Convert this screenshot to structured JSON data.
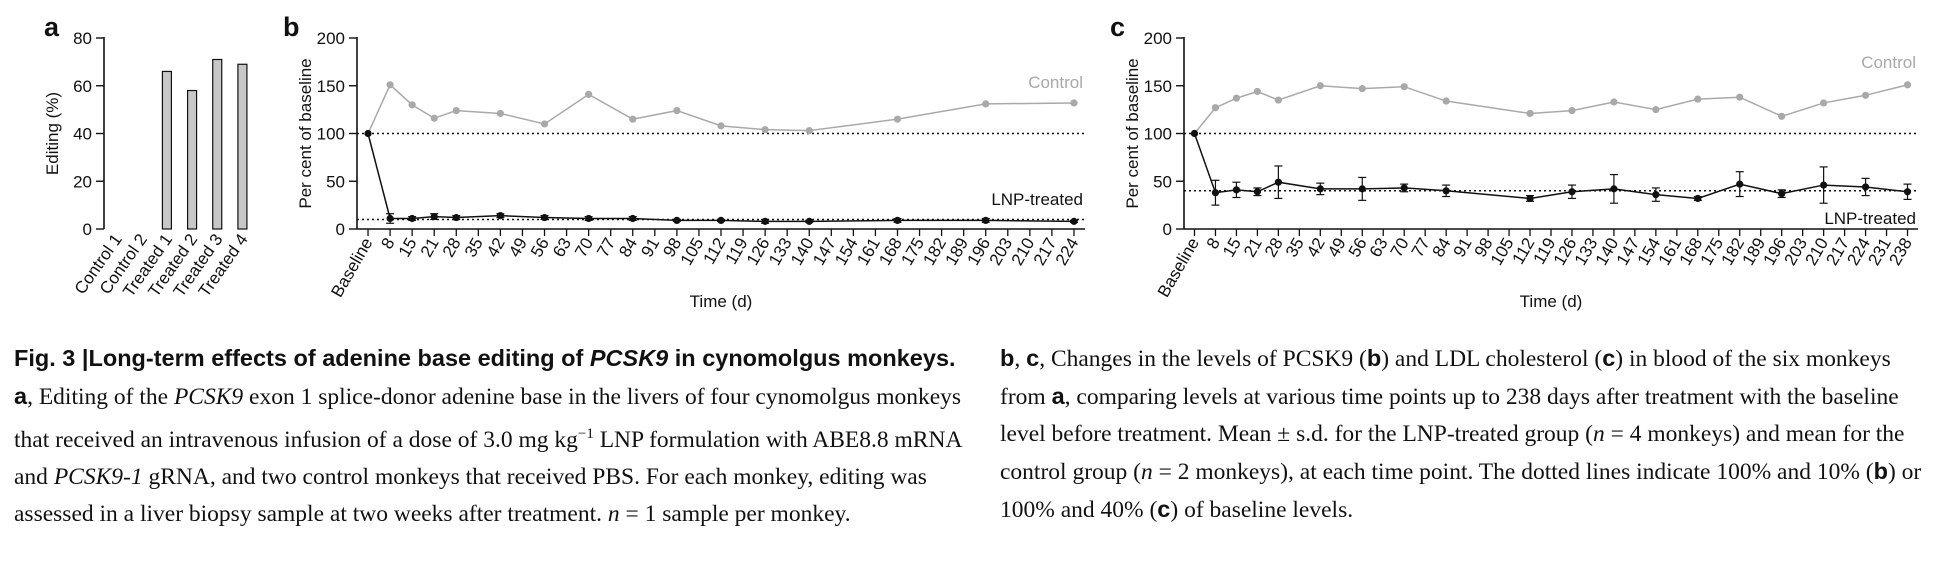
{
  "chart_data": [
    {
      "panel": "a",
      "type": "bar",
      "ylabel": "Editing (%)",
      "ylim": [
        0,
        80
      ],
      "yticks": [
        0,
        20,
        40,
        60,
        80
      ],
      "categories": [
        "Control 1",
        "Control 2",
        "Treated 1",
        "Treated 2",
        "Treated 3",
        "Treated 4"
      ],
      "values": [
        0,
        0,
        66,
        58,
        71,
        69
      ],
      "bar_color": "#c8c8c8"
    },
    {
      "panel": "b",
      "type": "line",
      "xlabel": "Time (d)",
      "ylabel": "Per cent of baseline",
      "ylim": [
        0,
        200
      ],
      "yticks": [
        0,
        50,
        100,
        150,
        200
      ],
      "x_ticks": [
        "Baseline",
        "8",
        "15",
        "21",
        "28",
        "35",
        "42",
        "49",
        "56",
        "63",
        "70",
        "77",
        "84",
        "91",
        "98",
        "105",
        "112",
        "119",
        "126",
        "133",
        "140",
        "147",
        "154",
        "161",
        "168",
        "175",
        "182",
        "189",
        "196",
        "203",
        "210",
        "217",
        "224"
      ],
      "reference_lines": [
        100,
        10
      ],
      "series": [
        {
          "name": "Control",
          "color": "#a9a9a9",
          "x": [
            "Baseline",
            "8",
            "15",
            "21",
            "28",
            "42",
            "56",
            "70",
            "84",
            "98",
            "112",
            "126",
            "140",
            "168",
            "196",
            "224"
          ],
          "y": [
            100,
            151,
            130,
            116,
            124,
            121,
            110,
            141,
            115,
            124,
            108,
            104,
            103,
            115,
            131,
            132
          ]
        },
        {
          "name": "LNP-treated",
          "color": "#111111",
          "x": [
            "Baseline",
            "8",
            "15",
            "21",
            "28",
            "42",
            "56",
            "70",
            "84",
            "98",
            "112",
            "126",
            "140",
            "168",
            "196",
            "224"
          ],
          "y": [
            100,
            11,
            11,
            13,
            12,
            14,
            12,
            11,
            11,
            9,
            9,
            8,
            8,
            9,
            9,
            8
          ],
          "error": [
            0,
            5,
            2,
            3,
            2,
            2,
            2,
            2,
            2,
            1,
            1,
            2,
            1,
            2,
            2,
            1
          ]
        }
      ]
    },
    {
      "panel": "c",
      "type": "line",
      "xlabel": "Time (d)",
      "ylabel": "Per cent of baseline",
      "ylim": [
        0,
        200
      ],
      "yticks": [
        0,
        50,
        100,
        150,
        200
      ],
      "x_ticks": [
        "Baseline",
        "8",
        "15",
        "21",
        "28",
        "35",
        "42",
        "49",
        "56",
        "63",
        "70",
        "77",
        "84",
        "91",
        "98",
        "105",
        "112",
        "119",
        "126",
        "133",
        "140",
        "147",
        "154",
        "161",
        "168",
        "175",
        "182",
        "189",
        "196",
        "203",
        "210",
        "217",
        "224",
        "231",
        "238"
      ],
      "reference_lines": [
        100,
        40
      ],
      "series": [
        {
          "name": "Control",
          "color": "#a9a9a9",
          "x": [
            "Baseline",
            "8",
            "15",
            "21",
            "28",
            "42",
            "56",
            "70",
            "84",
            "112",
            "126",
            "140",
            "154",
            "168",
            "182",
            "196",
            "210",
            "224",
            "238"
          ],
          "y": [
            100,
            127,
            137,
            144,
            135,
            150,
            147,
            149,
            134,
            121,
            124,
            133,
            125,
            136,
            138,
            118,
            132,
            140,
            151
          ]
        },
        {
          "name": "LNP-treated",
          "color": "#111111",
          "x": [
            "Baseline",
            "8",
            "15",
            "21",
            "28",
            "42",
            "56",
            "70",
            "84",
            "112",
            "126",
            "140",
            "154",
            "168",
            "182",
            "196",
            "210",
            "224",
            "238"
          ],
          "y": [
            100,
            38,
            41,
            39,
            49,
            42,
            42,
            43,
            40,
            32,
            39,
            42,
            36,
            32,
            47,
            37,
            46,
            44,
            39
          ],
          "error": [
            0,
            13,
            8,
            4,
            17,
            6,
            12,
            4,
            6,
            3,
            7,
            15,
            7,
            2,
            13,
            4,
            19,
            9,
            8
          ]
        }
      ]
    }
  ],
  "caption": {
    "left": {
      "fig_label": "Fig. 3 |",
      "title_pre": "Long-term effects of adenine base editing of ",
      "title_gene": "PCSK9",
      "title_post": " in cynomolgus monkeys.",
      "panel_a": "a",
      "text_1": ", Editing of the ",
      "gene_1": "PCSK9",
      "text_2": " exon 1 splice-donor adenine base in the livers of four cynomolgus monkeys that received an intravenous infusion of a dose of 3.0 mg kg",
      "superscript": "−1",
      "text_3": " LNP formulation with ABE8.8 mRNA and ",
      "grna": "PCSK9-1",
      "text_4": " gRNA, and two control monkeys that received PBS. For each monkey, editing was assessed in a liver biopsy sample at two weeks after treatment. ",
      "n_var": "n",
      "text_5": " = 1 sample per monkey."
    },
    "right": {
      "b1": "b",
      "t1": ", ",
      "c1": "c",
      "t2": ", Changes in the levels of PCSK9 (",
      "b2": "b",
      "t3": ") and LDL cholesterol (",
      "c2": "c",
      "t4": ") in blood of the six monkeys from ",
      "a1": "a",
      "t5": ", comparing levels at various time points up to 238 days after treatment with the baseline level before treatment. Mean ± s.d. for the LNP-treated group (",
      "n1": "n",
      "t6": " = 4 monkeys) and mean for the control group (",
      "n2": "n",
      "t7": " = 2 monkeys), at each time point. The dotted lines indicate 100% and 10% (",
      "b3": "b",
      "t8": ") or 100% and 40% (",
      "c3": "c",
      "t9": ") of baseline levels."
    }
  }
}
